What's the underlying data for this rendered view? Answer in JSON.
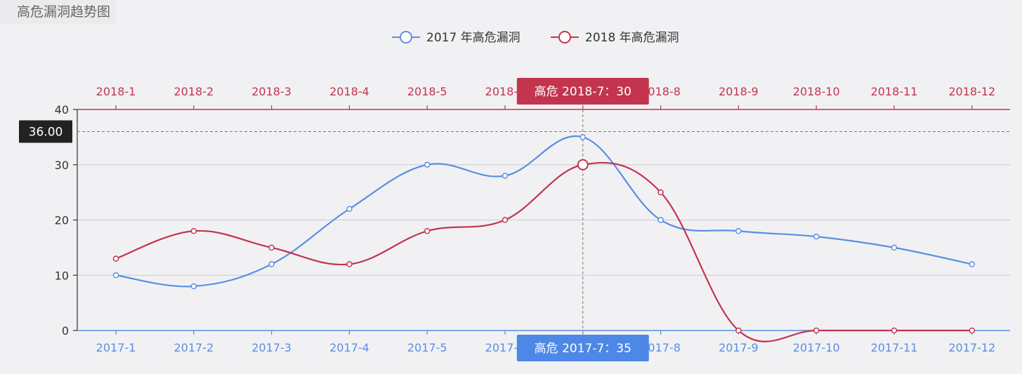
{
  "chart_data": {
    "type": "line",
    "title": "高危漏洞趋势图",
    "ylim": [
      0,
      40
    ],
    "yticks": [
      0,
      10,
      20,
      30,
      40
    ],
    "grid": true,
    "legend_position": "top-center",
    "series": [
      {
        "name": "2017 年高危漏洞",
        "color": "#5b8ee0",
        "axis": "bottom",
        "x": [
          "2017-1",
          "2017-2",
          "2017-3",
          "2017-4",
          "2017-5",
          "2017-6",
          "2017-7",
          "2017-8",
          "2017-9",
          "2017-10",
          "2017-11",
          "2017-12"
        ],
        "values": [
          10,
          8,
          12,
          22,
          30,
          28,
          35,
          20,
          18,
          17,
          15,
          12
        ]
      },
      {
        "name": "2018 年高危漏洞",
        "color": "#c2354d",
        "axis": "top",
        "x": [
          "2018-1",
          "2018-2",
          "2018-3",
          "2018-4",
          "2018-5",
          "2018-6",
          "2018-7",
          "2018-8",
          "2018-9",
          "2018-10",
          "2018-11",
          "2018-12"
        ],
        "values": [
          13,
          18,
          15,
          12,
          18,
          20,
          30,
          25,
          0,
          0,
          0,
          0
        ]
      }
    ],
    "crosshair": {
      "index": 6,
      "y_readout": "36.00",
      "y_value": 36,
      "top_tooltip": "高危  2018-7：30",
      "bottom_tooltip": "高危  2017-7：35"
    }
  }
}
